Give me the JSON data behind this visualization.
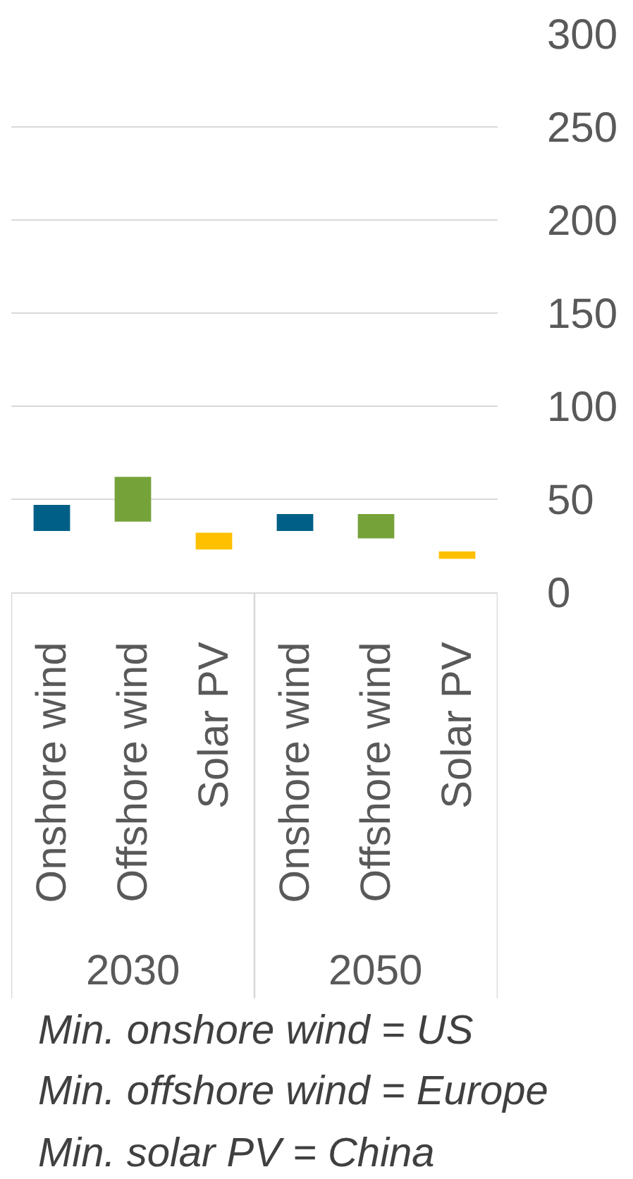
{
  "chart_data": {
    "type": "bar",
    "categories": [
      "Onshore wind",
      "Offshore wind",
      "Solar PV",
      "Onshore wind",
      "Offshore wind",
      "Solar PV"
    ],
    "values": [
      14,
      24,
      9,
      9,
      13,
      4
    ],
    "base": [
      33,
      38,
      23,
      33,
      29,
      18
    ],
    "colors": [
      "#005f86",
      "#76a23a",
      "#ffc000",
      "#005f86",
      "#76a23a",
      "#ffc000"
    ],
    "ylim": [
      0,
      300
    ],
    "yticks": [
      0,
      50,
      100,
      150,
      200,
      250,
      300
    ],
    "grid": "y",
    "annotations": [
      "2030",
      "2050",
      "Min. onshore wind = US\nMin. offshore wind = Europe\nMin. solar PV = China"
    ]
  }
}
